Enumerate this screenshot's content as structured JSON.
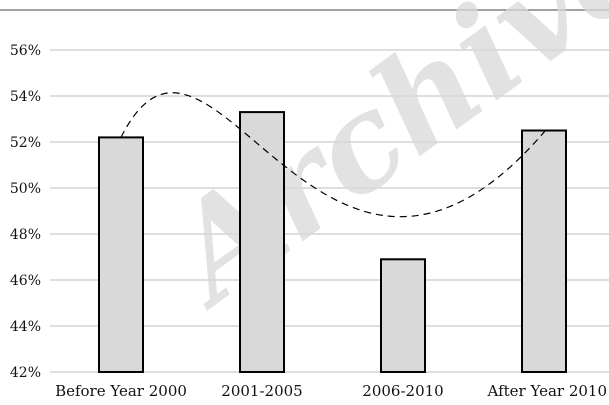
{
  "chart_data": {
    "type": "bar",
    "categories": [
      "Before Year 2000",
      "2001-2005",
      "2006-2010",
      "After Year 2010"
    ],
    "values": [
      52.2,
      53.3,
      46.9,
      52.5
    ],
    "ylim": [
      42,
      56
    ],
    "yticks": [
      "42%",
      "44%",
      "46%",
      "48%",
      "50%",
      "52%",
      "54%",
      "56%"
    ],
    "title": "",
    "xlabel": "",
    "ylabel": "",
    "grid": "horizontal",
    "trendline": {
      "style": "dashed",
      "type": "smooth"
    },
    "colors": {
      "bar_fill": "#d9d9d9",
      "bar_stroke": "#000000",
      "grid": "#bdbdbd",
      "trend": "#000000"
    }
  },
  "watermark_text": "Archive"
}
